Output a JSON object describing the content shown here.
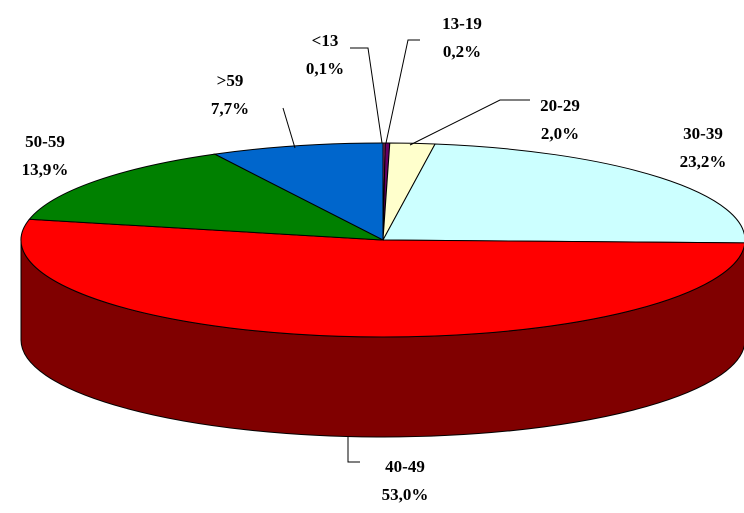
{
  "chart_data": {
    "type": "pie",
    "categories": [
      "<13",
      "13-19",
      "20-29",
      "30-39",
      "40-49",
      "50-59",
      ">59"
    ],
    "values": [
      0.1,
      0.2,
      2.0,
      23.2,
      53.0,
      13.9,
      7.7
    ],
    "value_labels": [
      "0,1%",
      "0,2%",
      "2,0%",
      "23,2%",
      "53,0%",
      "13,9%",
      "7,7%"
    ],
    "colors": [
      "#993366",
      "#660066",
      "#ffffcc",
      "#ccffff",
      "#ff0000",
      "#008000",
      "#0066cc"
    ]
  }
}
